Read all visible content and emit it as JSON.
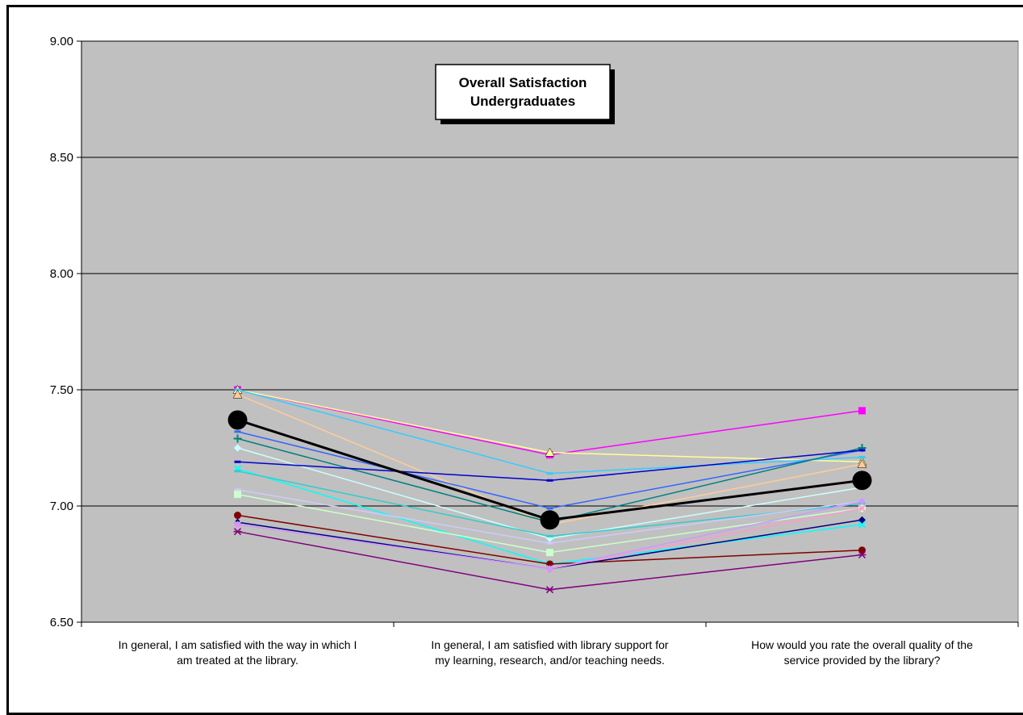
{
  "page_heading": "",
  "chart_data": {
    "type": "line",
    "title": [
      "Overall Satisfaction",
      "Undergraduates"
    ],
    "xlabel": "",
    "ylabel": "",
    "ylim": [
      6.5,
      9.0
    ],
    "yticks": [
      "6.50",
      "7.00",
      "7.50",
      "8.00",
      "8.50",
      "9.00"
    ],
    "ytick_values": [
      6.5,
      7.0,
      7.5,
      8.0,
      8.5,
      9.0
    ],
    "grid": true,
    "background": "#c0c0c0",
    "categories": [
      [
        "In general, I am satisfied with the way in which I",
        "am treated at the library."
      ],
      [
        "In general, I am satisfied with library support for",
        "my learning, research, and/or teaching needs."
      ],
      [
        "How would you rate the overall quality of the",
        "service provided by the library?"
      ]
    ],
    "series": [
      {
        "values": [
          7.5,
          7.22,
          7.41
        ],
        "color": "#ff00ff",
        "marker": "square"
      },
      {
        "values": [
          7.5,
          7.23,
          7.19
        ],
        "color": "#ffff99",
        "marker": "triangle"
      },
      {
        "values": [
          7.5,
          7.14,
          7.21
        ],
        "color": "#33ccff",
        "marker": "dash"
      },
      {
        "values": [
          7.48,
          6.92,
          7.18
        ],
        "color": "#ffcc99",
        "marker": "triangle"
      },
      {
        "values": [
          7.32,
          6.99,
          7.24
        ],
        "color": "#3366ff",
        "marker": "dash"
      },
      {
        "values": [
          7.29,
          6.93,
          7.25
        ],
        "color": "#008080",
        "marker": "plus"
      },
      {
        "values": [
          7.25,
          6.86,
          7.08
        ],
        "color": "#ccffff",
        "marker": "diamond"
      },
      {
        "values": [
          7.19,
          7.11,
          7.24
        ],
        "color": "#0000cc",
        "marker": "dash"
      },
      {
        "values": [
          7.16,
          6.75,
          6.92
        ],
        "color": "#00ffff",
        "marker": "x"
      },
      {
        "values": [
          7.15,
          6.87,
          7.01
        ],
        "color": "#33cccc",
        "marker": "dash"
      },
      {
        "values": [
          7.07,
          6.84,
          7.02
        ],
        "color": "#ccccff",
        "marker": "dash"
      },
      {
        "values": [
          7.05,
          6.8,
          6.99
        ],
        "color": "#ccffcc",
        "marker": "square"
      },
      {
        "values": [
          6.96,
          6.75,
          6.81
        ],
        "color": "#800000",
        "marker": "circle"
      },
      {
        "values": [
          6.93,
          6.73,
          6.94
        ],
        "color": "#000080",
        "marker": "diamond"
      },
      {
        "values": [
          6.92,
          6.73,
          6.99
        ],
        "color": "#ff99cc",
        "marker": "x"
      },
      {
        "values": [
          6.92,
          6.73,
          7.02
        ],
        "color": "#cc99ff",
        "marker": "diamond"
      },
      {
        "values": [
          6.89,
          6.64,
          6.79
        ],
        "color": "#800080",
        "marker": "star"
      },
      {
        "values": [
          7.37,
          6.94,
          7.11
        ],
        "color": "#000000",
        "marker": "big-circle"
      }
    ]
  }
}
